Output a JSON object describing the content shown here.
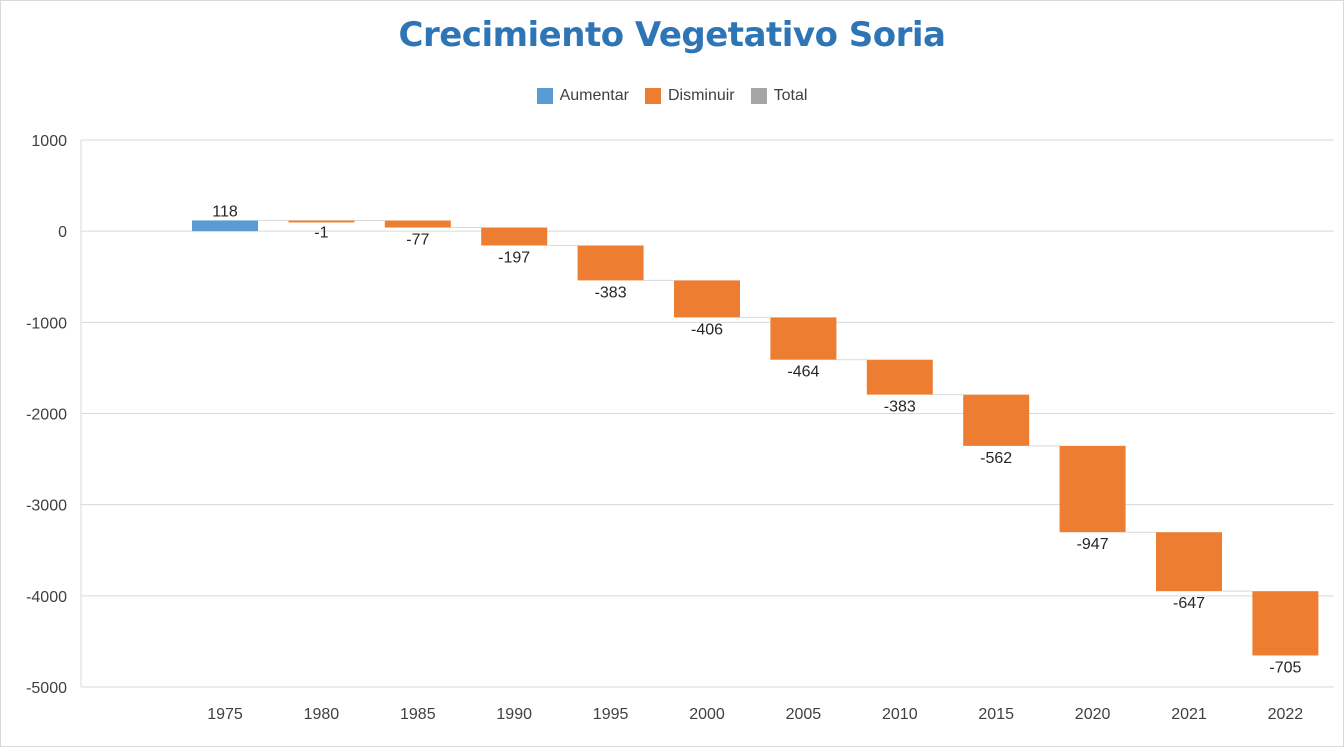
{
  "chart_data": {
    "type": "bar",
    "subtype": "waterfall",
    "title": "Crecimiento Vegetativo Soria",
    "xlabel": "",
    "ylabel": "",
    "categories": [
      "1975",
      "1980",
      "1985",
      "1990",
      "1995",
      "2000",
      "2005",
      "2010",
      "2015",
      "2020",
      "2021",
      "2022"
    ],
    "values": [
      118,
      -1,
      -77,
      -197,
      -383,
      -406,
      -464,
      -383,
      -562,
      -947,
      -647,
      -705
    ],
    "value_labels": [
      "118",
      "-1",
      "-77",
      "-197",
      "-383",
      "-406",
      "-464",
      "-383",
      "-562",
      "-947",
      "-647",
      "-705"
    ],
    "ylim": [
      -5000,
      1000
    ],
    "yticks": [
      1000,
      0,
      -1000,
      -2000,
      -3000,
      -4000,
      -5000
    ],
    "ytick_labels": [
      "1000",
      "0",
      "-1000",
      "-2000",
      "-3000",
      "-4000",
      "-5000"
    ],
    "grid": true,
    "legend_position": "top",
    "legend": [
      {
        "name": "Aumentar",
        "color": "#5b9bd5"
      },
      {
        "name": "Disminuir",
        "color": "#ed7d31"
      },
      {
        "name": "Total",
        "color": "#a5a5a5"
      }
    ],
    "colors": {
      "increase": "#5b9bd5",
      "decrease": "#ed7d31",
      "total": "#a5a5a5",
      "title": "#2e75b6",
      "grid": "#d9d9d9"
    }
  }
}
